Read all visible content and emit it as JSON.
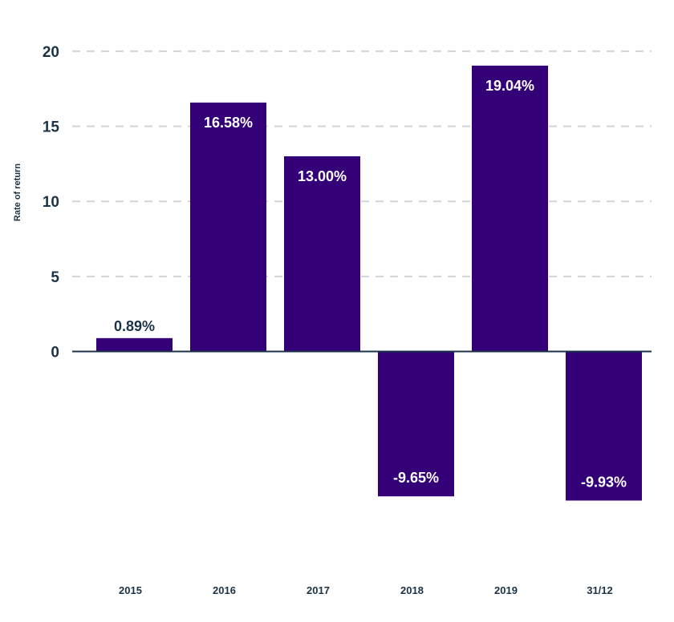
{
  "chart_data": {
    "type": "bar",
    "categories": [
      "2015",
      "2016",
      "2017",
      "2018",
      "2019",
      "31/12"
    ],
    "values": [
      0.89,
      16.58,
      13.0,
      -9.65,
      19.04,
      -9.93
    ],
    "data_labels": [
      "0.89%",
      "16.58%",
      "13.00%",
      "-9.65%",
      "19.04%",
      "-9.93%"
    ],
    "ylabel": "Rate of return",
    "yticks": [
      0,
      5,
      10,
      15,
      20
    ],
    "ylim": [
      -12,
      20
    ],
    "grid": true,
    "colors": {
      "bar": "#330077",
      "grid": "#cfd5da",
      "zero_line": "#1c3347",
      "text": "#1c3347",
      "label_inside": "#ffffff"
    }
  }
}
